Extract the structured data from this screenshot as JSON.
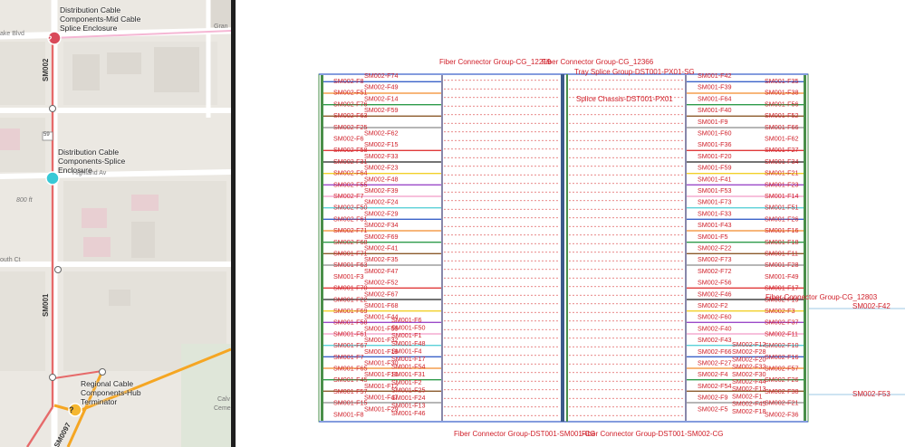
{
  "map": {
    "callouts": [
      {
        "id": "mid",
        "text": "Distribution Cable Components-Mid Cable Splice Enclosure"
      },
      {
        "id": "splice",
        "text": "Distribution Cable Components-Splice Enclosure"
      },
      {
        "id": "hub",
        "text": "Regional Cable Components-Hub Terminator"
      }
    ],
    "roads": {
      "blvd": "ake Blvd",
      "gran": "Gran",
      "highland": "Highland Av",
      "south": "outh Ct",
      "badge": "59",
      "ft": "800 ft",
      "cal": "Calv",
      "ceme": "Ceme"
    },
    "cables": {
      "upper": "SM002",
      "lower": "SM001",
      "bottom": "SM0097"
    },
    "marker_symbol": "?"
  },
  "diagram": {
    "top_labels": [
      {
        "id": "cg12219",
        "text": "Fiber Connector Group-CG_12219"
      },
      {
        "id": "cg12366",
        "text": "Fiber Connector Group-CG_12366"
      },
      {
        "id": "tray",
        "text": "Tray Splice Group-DST001-PX01-SG"
      },
      {
        "id": "chassis",
        "text": "Splice Chassis-DST001-PX01"
      }
    ],
    "right_labels": [
      {
        "id": "cg12803",
        "text": "Fiber Connector Group-CG_12803"
      },
      {
        "id": "f42",
        "text": "SM002-F42"
      },
      {
        "id": "f53",
        "text": "SM002-F53"
      }
    ],
    "bottom_labels": [
      {
        "id": "b1",
        "text": "Fiber Connector Group-DST001-SM001-CG"
      },
      {
        "id": "b2",
        "text": "Fiber Connector Group-DST001-SM002-CG"
      }
    ],
    "left_rows": [
      [
        "SM002-F8",
        "SM002-F74"
      ],
      [
        "SM002-F51",
        "SM002-F49"
      ],
      [
        "SM002-F76",
        "SM002-F14"
      ],
      [
        "SM002-F63",
        "SM002-F59"
      ],
      [
        "SM002-F25",
        ""
      ],
      [
        "SM002-F6",
        "SM002-F62"
      ],
      [
        "SM002-F58",
        "SM002-F15"
      ],
      [
        "SM002-F31",
        "SM002-F33"
      ],
      [
        "SM002-F64",
        "SM002-F23"
      ],
      [
        "SM002-F55",
        "SM002-F48"
      ],
      [
        "SM002-F7",
        "SM002-F39"
      ],
      [
        "SM002-F50",
        "SM002-F24"
      ],
      [
        "SM002-F61",
        "SM002-F29"
      ],
      [
        "SM002-F71",
        "SM002-F34"
      ],
      [
        "SM002-F68",
        "SM002-F69"
      ],
      [
        "SM001-F71",
        "SM002-F41"
      ],
      [
        "SM001-F63",
        "SM002-F35"
      ],
      [
        "SM001-F3",
        "SM002-F47"
      ],
      [
        "SM001-F70",
        "SM002-F52"
      ],
      [
        "SM001-F22",
        "SM002-F67"
      ],
      [
        "SM001-F69",
        "SM001-F68"
      ],
      [
        "SM001-F58",
        "SM001-F44"
      ],
      [
        "SM001-F61",
        "SM001-F55"
      ],
      [
        "SM001-F67",
        "SM001-F32"
      ],
      [
        "SM001-F7",
        "SM001-F19"
      ],
      [
        "SM001-F65",
        "SM001-F30"
      ],
      [
        "SM001-F45",
        "SM001-F10"
      ],
      [
        "SM001-F57",
        "SM001-F12"
      ],
      [
        "SM001-F15",
        "SM001-F47"
      ],
      [
        "SM001-F8",
        "SM001-F29"
      ]
    ],
    "left_extra": [
      "SM001-F6",
      "SM001-F50",
      "SM001-F1",
      "SM001-F48",
      "SM001-F4",
      "SM001-F17",
      "SM001-F54",
      "SM001-F31",
      "SM001-F2",
      "SM001-F25",
      "SM001-F24",
      "SM001-F13",
      "SM001-F46"
    ],
    "right_rows": [
      [
        "SM001-F42",
        "SM001-F35"
      ],
      [
        "SM001-F39",
        "SM001-F38"
      ],
      [
        "SM001-F64",
        "SM001-F56"
      ],
      [
        "SM001-F40",
        "SM001-F52"
      ],
      [
        "SM001-F9",
        "SM001-F66"
      ],
      [
        "SM001-F60",
        "SM001-F62"
      ],
      [
        "SM001-F36",
        "SM001-F27"
      ],
      [
        "SM001-F20",
        "SM001-F34"
      ],
      [
        "SM001-F59",
        "SM001-F21"
      ],
      [
        "SM001-F41",
        "SM001-F23"
      ],
      [
        "SM001-F53",
        "SM001-F14"
      ],
      [
        "SM001-F73",
        "SM001-F51"
      ],
      [
        "SM001-F33",
        "SM001-F26"
      ],
      [
        "SM001-F43",
        "SM001-F16"
      ],
      [
        "SM001-F5",
        "SM001-F18"
      ],
      [
        "SM002-F22",
        "SM001-F11"
      ],
      [
        "SM002-F73",
        "SM001-F28"
      ],
      [
        "SM002-F72",
        "SM001-F49"
      ],
      [
        "SM002-F56",
        "SM001-F17"
      ],
      [
        "SM002-F46",
        "SM002-F19"
      ],
      [
        "SM002-F2",
        "SM002-F3"
      ],
      [
        "SM002-F60",
        "SM002-F37"
      ],
      [
        "SM002-F40",
        "SM002-F11"
      ],
      [
        "SM002-F43",
        "SM002-F10"
      ],
      [
        "SM002-F66",
        "SM002-F16"
      ],
      [
        "SM002-F27",
        "SM002-F57"
      ],
      [
        "SM002-F4",
        "SM002-F26"
      ],
      [
        "SM002-F54",
        "SM002-F38"
      ],
      [
        "SM002-F9",
        "SM002-F21"
      ],
      [
        "SM002-F5",
        "SM002-F36"
      ]
    ],
    "right_extra": [
      "SM002-F12",
      "SM002-F28",
      "SM002-F20",
      "SM002-F32",
      "SM002-F30",
      "SM002-F44",
      "SM002-F13",
      "SM002-F1",
      "SM002-F45",
      "SM002-F18"
    ]
  }
}
